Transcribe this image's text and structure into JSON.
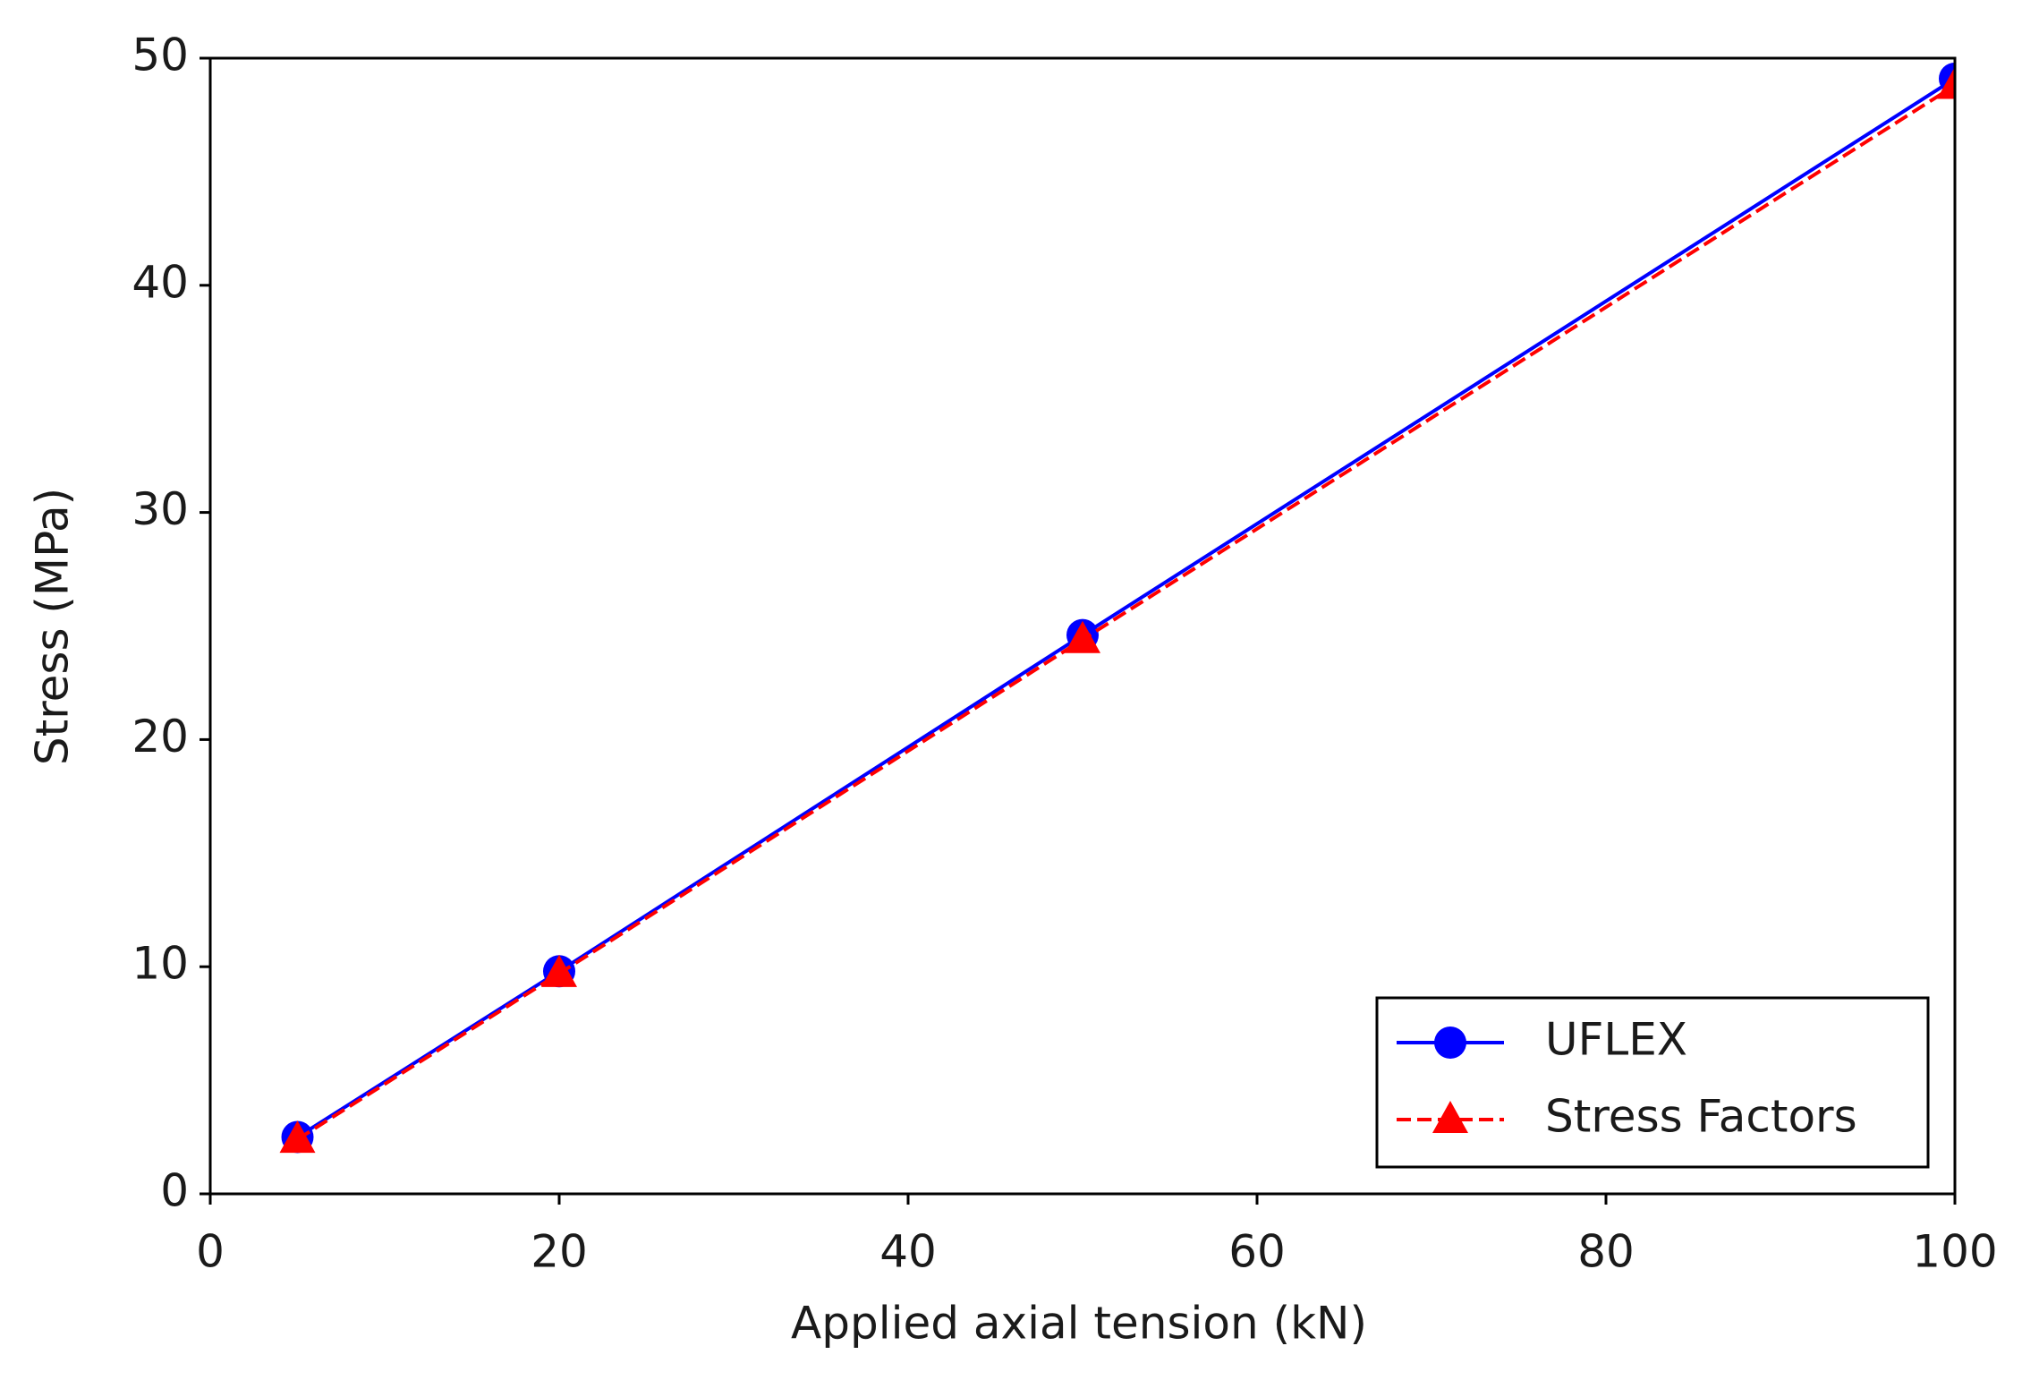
{
  "chart_data": {
    "type": "line",
    "x_label": "Applied axial tension (kN)",
    "y_label": "Stress (MPa)",
    "x": [
      5,
      20,
      50,
      100
    ],
    "series": [
      {
        "name": "UFLEX",
        "color": "#0000ff",
        "values": [
          2.5,
          9.8,
          24.6,
          49.1
        ],
        "marker": "circle",
        "linestyle": "solid"
      },
      {
        "name": "Stress Factors",
        "color": "#ff0000",
        "values": [
          2.4,
          9.7,
          24.4,
          48.8
        ],
        "marker": "triangle",
        "linestyle": "dashed"
      }
    ],
    "xlim": [
      0,
      100
    ],
    "xticks": [
      0,
      20,
      40,
      60,
      80,
      100
    ],
    "ylim": [
      0,
      50
    ],
    "yticks": [
      0,
      10,
      20,
      30,
      40,
      50
    ],
    "grid": false,
    "legend": "lower right"
  }
}
